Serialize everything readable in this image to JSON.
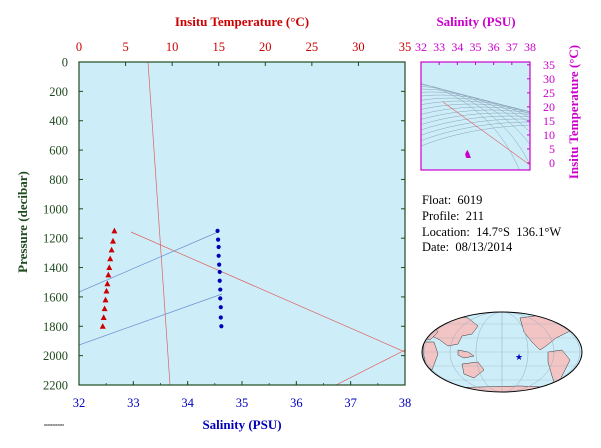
{
  "colors": {
    "plot_bg": "#cdeef8",
    "pressure_axis": "#1f4a1f",
    "temperature": "#cc0000",
    "salinity": "#0000bb",
    "ts_axis": "#cc00cc",
    "guide_line": "#e06060",
    "guide_blue": "#6a8fd0",
    "land": "#f3c4c4",
    "ocean": "#cdeef8"
  },
  "info": {
    "float": "Float:  6019",
    "profile": "Profile:  211",
    "location": "Location:  14.7°S  136.1°W",
    "date": "Date:  08/13/2014"
  },
  "footnote": "############",
  "chart_data": [
    {
      "type": "scatter",
      "title": "Insitu Temperature (°C)",
      "xlabel": "Salinity (PSU)",
      "ylabel": "Pressure (decibar)",
      "x_ticks": [
        "32",
        "33",
        "34",
        "35",
        "36",
        "37",
        "38"
      ],
      "top_ticks": [
        "0",
        "5",
        "10",
        "15",
        "20",
        "25",
        "30",
        "35"
      ],
      "y_ticks": [
        "0",
        "200",
        "400",
        "600",
        "800",
        "1000",
        "1200",
        "1400",
        "1600",
        "1800",
        "2000",
        "2200"
      ],
      "xlim": [
        32,
        38
      ],
      "top_xlim": [
        0,
        35
      ],
      "ylim": [
        0,
        2200
      ],
      "y_inverted": true,
      "grid": false,
      "series": [
        {
          "axis": "temperature",
          "marker": "triangle",
          "x": [
            3.8,
            3.65,
            3.5,
            3.35,
            3.25,
            3.15,
            3.05,
            2.95,
            2.85,
            2.75,
            2.65,
            2.55
          ],
          "y": [
            1150,
            1220,
            1280,
            1340,
            1400,
            1450,
            1510,
            1560,
            1620,
            1680,
            1740,
            1800
          ]
        },
        {
          "axis": "salinity",
          "marker": "circle",
          "x": [
            34.55,
            34.56,
            34.57,
            34.57,
            34.58,
            34.59,
            34.59,
            34.6,
            34.6,
            34.61,
            34.61,
            34.62
          ],
          "y": [
            1150,
            1210,
            1260,
            1320,
            1380,
            1430,
            1490,
            1550,
            1610,
            1670,
            1740,
            1800
          ]
        }
      ]
    },
    {
      "type": "scatter",
      "title": "Salinity (PSU)",
      "ylabel": "Insitu Temperature (°C)",
      "x_ticks": [
        "32",
        "33",
        "34",
        "35",
        "36",
        "37",
        "38"
      ],
      "y_ticks": [
        "0",
        "5",
        "10",
        "15",
        "20",
        "25",
        "30",
        "35"
      ],
      "xlim": [
        32,
        38
      ],
      "ylim": [
        -2.5,
        36
      ],
      "series": [
        {
          "marker": "triangle",
          "x": [
            34.55,
            34.56,
            34.57,
            34.58,
            34.6,
            34.62
          ],
          "y": [
            3.8,
            3.5,
            3.2,
            2.9,
            2.7,
            2.5
          ]
        }
      ]
    }
  ]
}
